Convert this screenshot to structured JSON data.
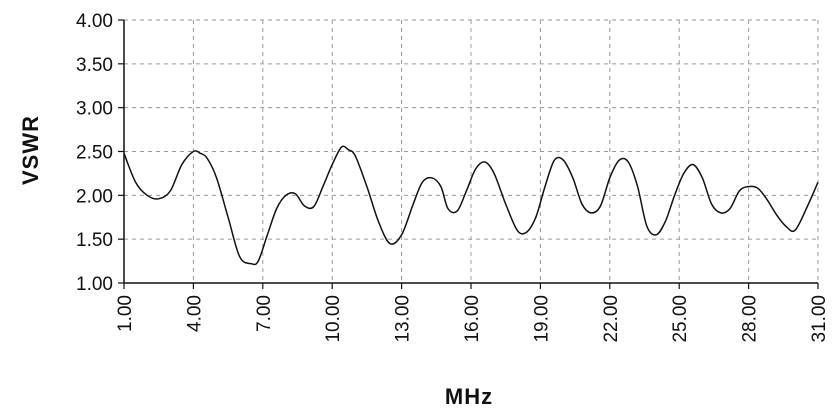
{
  "chart_data": {
    "type": "line",
    "xlabel": "MHz",
    "ylabel": "VSWR",
    "xlim": [
      1,
      31
    ],
    "ylim": [
      1,
      4
    ],
    "grid": true,
    "x_tick_labels": [
      "1.00",
      "4.00",
      "7.00",
      "10.00",
      "13.00",
      "16.00",
      "19.00",
      "22.00",
      "25.00",
      "28.00",
      "31.00"
    ],
    "y_tick_labels": [
      "1.00",
      "1.50",
      "2.00",
      "2.50",
      "3.00",
      "3.50",
      "4.00"
    ],
    "series": [
      {
        "x": [
          1.0,
          1.5,
          2.0,
          2.5,
          3.0,
          3.5,
          4.0,
          4.3,
          4.6,
          5.0,
          5.5,
          6.0,
          6.5,
          6.8,
          7.2,
          7.6,
          8.0,
          8.4,
          8.8,
          9.2,
          9.6,
          10.0,
          10.4,
          10.7,
          11.0,
          11.5,
          12.0,
          12.5,
          13.0,
          13.5,
          13.9,
          14.3,
          14.7,
          15.0,
          15.4,
          15.8,
          16.2,
          16.6,
          17.0,
          17.5,
          18.0,
          18.4,
          18.8,
          19.2,
          19.6,
          20.0,
          20.4,
          20.8,
          21.2,
          21.6,
          22.0,
          22.4,
          22.8,
          23.2,
          23.6,
          24.0,
          24.4,
          24.8,
          25.2,
          25.6,
          26.0,
          26.4,
          26.8,
          27.2,
          27.6,
          28.0,
          28.4,
          28.8,
          29.2,
          29.6,
          30.0,
          30.5,
          31.0
        ],
        "y": [
          2.48,
          2.15,
          2.0,
          1.96,
          2.05,
          2.35,
          2.5,
          2.48,
          2.42,
          2.2,
          1.75,
          1.3,
          1.22,
          1.25,
          1.55,
          1.85,
          2.0,
          2.02,
          1.88,
          1.87,
          2.1,
          2.35,
          2.55,
          2.52,
          2.45,
          2.1,
          1.7,
          1.45,
          1.55,
          1.9,
          2.15,
          2.2,
          2.1,
          1.85,
          1.82,
          2.05,
          2.3,
          2.38,
          2.25,
          1.9,
          1.6,
          1.58,
          1.75,
          2.1,
          2.4,
          2.4,
          2.2,
          1.9,
          1.8,
          1.88,
          2.2,
          2.4,
          2.38,
          2.1,
          1.65,
          1.55,
          1.7,
          2.0,
          2.25,
          2.35,
          2.2,
          1.9,
          1.8,
          1.85,
          2.05,
          2.1,
          2.08,
          1.95,
          1.78,
          1.65,
          1.6,
          1.85,
          2.15
        ]
      }
    ]
  }
}
